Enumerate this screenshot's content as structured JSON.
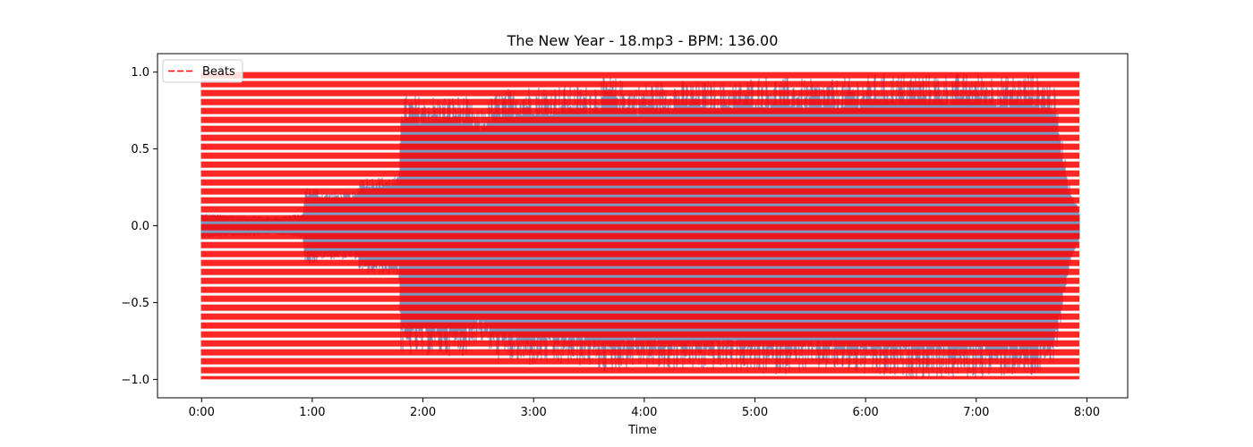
{
  "chart_data": {
    "type": "line",
    "title": "The New Year - 18.mp3 - BPM: 136.00",
    "xlabel": "Time",
    "ylabel": "",
    "xlim_seconds": [
      -23.9,
      502.1
    ],
    "ylim": [
      -1.12,
      1.12
    ],
    "x_tick_values_seconds": [
      0,
      60,
      120,
      180,
      240,
      300,
      360,
      420,
      480
    ],
    "x_tick_labels": [
      "0:00",
      "1:00",
      "2:00",
      "3:00",
      "4:00",
      "5:00",
      "6:00",
      "7:00",
      "8:00"
    ],
    "y_tick_values": [
      -1.0,
      -0.5,
      0.0,
      0.5,
      1.0
    ],
    "y_tick_labels": [
      "−1.0",
      "−0.5",
      "0.0",
      "0.5",
      "1.0"
    ],
    "grid": false,
    "legend_position": "top-left",
    "bpm": 136.0,
    "duration_seconds": 475.7,
    "series": [
      {
        "name": "",
        "kind": "waveform",
        "color": "#5b7fb0",
        "envelope": {
          "t": [
            0,
            20,
            40,
            55,
            56,
            63,
            64,
            84,
            86,
            107,
            108,
            130,
            131,
            143,
            150,
            160,
            175,
            200,
            210,
            221,
            235,
            245,
            250,
            260,
            290,
            300,
            340,
            370,
            380,
            400,
            420,
            440,
            450,
            460,
            462,
            463,
            470,
            472,
            475.7
          ],
          "amplitude": [
            0.08,
            0.07,
            0.06,
            0.08,
            0.25,
            0.25,
            0.22,
            0.22,
            0.32,
            0.32,
            0.85,
            0.85,
            0.85,
            0.85,
            0.75,
            0.88,
            0.92,
            0.92,
            0.92,
            0.98,
            0.92,
            0.95,
            0.95,
            0.95,
            0.95,
            0.98,
            0.95,
            1.0,
            1.0,
            1.0,
            1.0,
            0.98,
            1.0,
            0.95,
            0.92,
            0.85,
            0.3,
            0.22,
            0.1
          ]
        }
      },
      {
        "name": "Beats",
        "kind": "vertical-beat-lines",
        "color": "#ff0000",
        "style": "dashed",
        "ymin": -1.0,
        "ymax": 1.0,
        "start_seconds": 0,
        "interval_seconds": 0.4412,
        "end_seconds": 475.7
      }
    ],
    "colors": {
      "waveform": "#5b7fb0",
      "beats": "#ff0000",
      "axes": "#000000"
    }
  }
}
